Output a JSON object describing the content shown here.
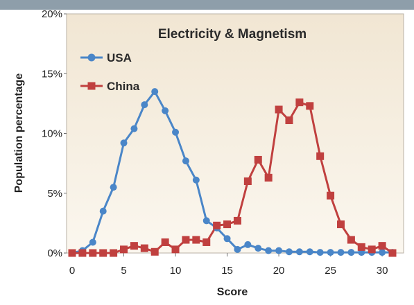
{
  "chart_data": {
    "type": "line",
    "title": "Electricity & Magnetism",
    "xlabel": "Score",
    "ylabel": "Population percentage",
    "xlim": [
      0,
      31
    ],
    "ylim": [
      0,
      20
    ],
    "xticks": [
      0,
      5,
      10,
      15,
      20,
      25,
      30
    ],
    "yticks": [
      0,
      5,
      10,
      15,
      20
    ],
    "ytick_labels": [
      "0%",
      "5%",
      "10%",
      "15%",
      "20%"
    ],
    "grid": false,
    "legend_position": "top-left",
    "series": [
      {
        "name": "USA",
        "color": "#4a86c8",
        "marker": "circle",
        "x": [
          0,
          1,
          2,
          3,
          4,
          5,
          6,
          7,
          8,
          9,
          10,
          11,
          12,
          13,
          14,
          15,
          16,
          17,
          18,
          19,
          20,
          21,
          22,
          23,
          24,
          25,
          26,
          27,
          28,
          29,
          30,
          31
        ],
        "y": [
          0.0,
          0.2,
          0.9,
          3.5,
          5.5,
          9.2,
          10.4,
          12.4,
          13.5,
          11.9,
          10.1,
          7.7,
          6.1,
          2.7,
          2.1,
          1.2,
          0.3,
          0.7,
          0.4,
          0.2,
          0.2,
          0.1,
          0.1,
          0.1,
          0.05,
          0.05,
          0.05,
          0.05,
          0.05,
          0.05,
          0.05,
          0.05
        ]
      },
      {
        "name": "China",
        "color": "#c0403f",
        "marker": "square",
        "x": [
          0,
          1,
          2,
          3,
          4,
          5,
          6,
          7,
          8,
          9,
          10,
          11,
          12,
          13,
          14,
          15,
          16,
          17,
          18,
          19,
          20,
          21,
          22,
          23,
          24,
          25,
          26,
          27,
          28,
          29,
          30,
          31
        ],
        "y": [
          0.0,
          0.0,
          0.0,
          0.0,
          0.0,
          0.3,
          0.6,
          0.4,
          0.1,
          0.9,
          0.3,
          1.1,
          1.1,
          0.9,
          2.3,
          2.4,
          2.7,
          6.0,
          7.8,
          6.3,
          12.0,
          11.1,
          12.6,
          12.3,
          8.1,
          4.8,
          2.4,
          1.1,
          0.5,
          0.3,
          0.6,
          0.0
        ]
      }
    ]
  }
}
